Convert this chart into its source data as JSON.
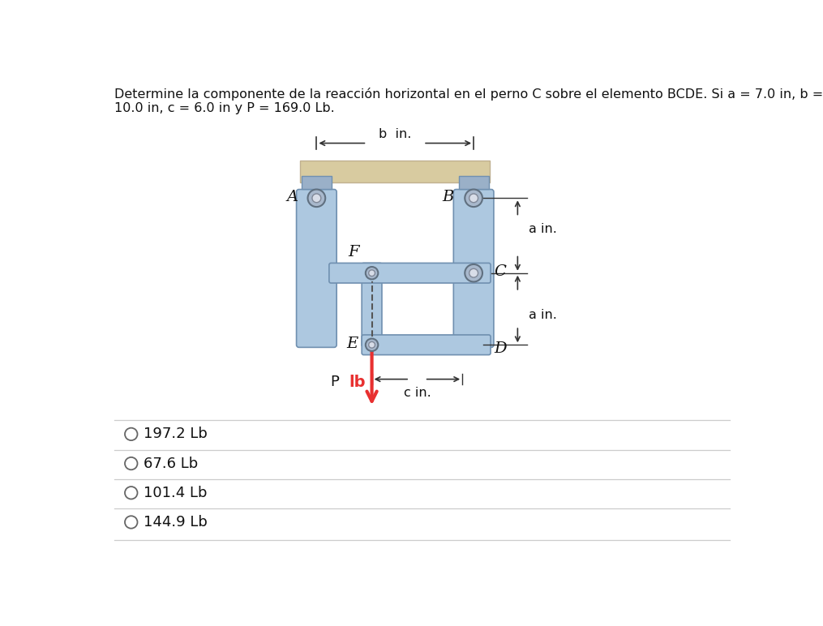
{
  "title_text": "Determine la componente de la reacción horizontal en el perno C sobre el elemento BCDE. Si a = 7.0 in, b =\n10.0 in, c = 6.0 in y P = 169.0 Lb.",
  "background_color": "#ffffff",
  "options": [
    "197.2 Lb",
    "67.6 Lb",
    "101.4 Lb",
    "144.9 Lb"
  ],
  "beam_color": "#adc8e0",
  "beam_color_light": "#c8dff0",
  "ceiling_color": "#d8cba0",
  "pin_outer_color": "#a8b8cc",
  "pin_inner_color": "#d8dde8",
  "arrow_color": "#e83030",
  "dim_color": "#333333",
  "text_color": "#111111",
  "label_b": "b  in.",
  "label_a": "a in.",
  "label_c": "c in.",
  "label_P": "P",
  "label_lb": "lb"
}
